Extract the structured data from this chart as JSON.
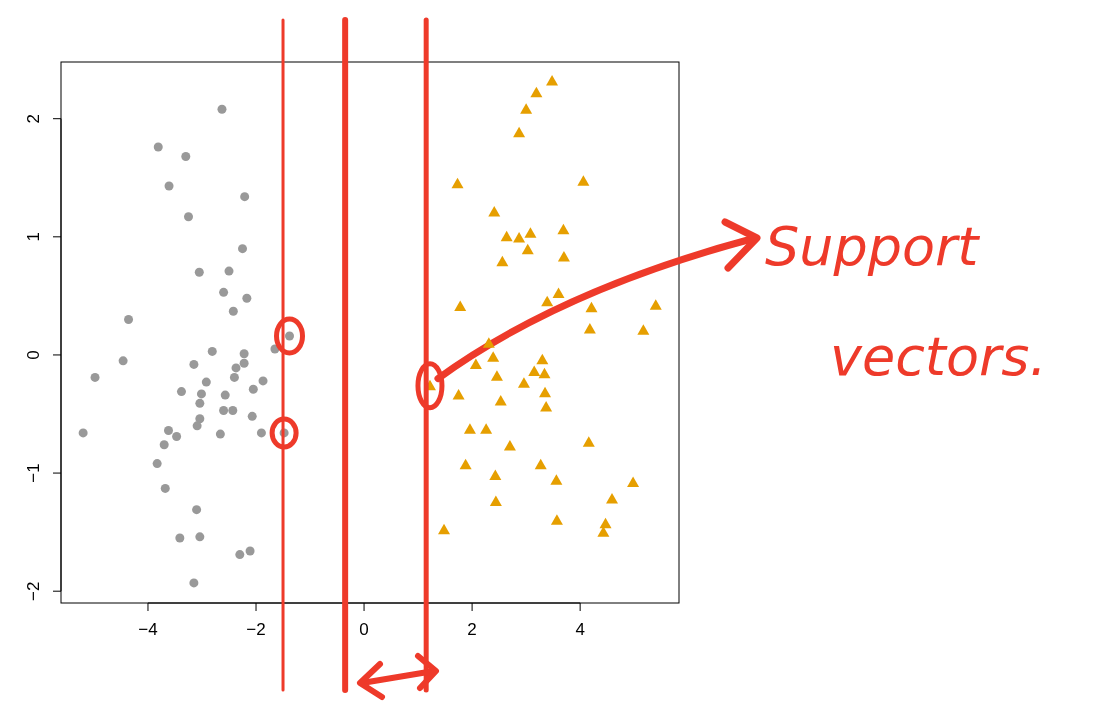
{
  "chart_data": {
    "type": "scatter",
    "xlim": [
      -5.61,
      5.83
    ],
    "ylim": [
      -2.1,
      2.48
    ],
    "xticks": [
      -4,
      -2,
      0,
      2,
      4
    ],
    "yticks": [
      -2,
      -1,
      0,
      1,
      2
    ],
    "grid": false,
    "series": [
      {
        "color": "#999999",
        "marker": "circle",
        "x": [
          -2.63,
          -3.81,
          -3.3,
          -3.61,
          -2.21,
          -3.25,
          -2.25,
          -3.05,
          -2.5,
          -2.6,
          -2.17,
          -2.42,
          -4.36,
          -1.38,
          -1.65,
          -2.81,
          -2.22,
          -4.46,
          -3.15,
          -2.22,
          -2.37,
          -4.98,
          -2.4,
          -2.92,
          -1.87,
          -2.05,
          -3.38,
          -3.01,
          -2.57,
          -3.04,
          -2.6,
          -2.43,
          -2.07,
          -3.04,
          -3.09,
          -3.62,
          -5.2,
          -2.66,
          -1.9,
          -1.48,
          -3.47,
          -3.7,
          -3.83,
          -3.68,
          -3.1,
          -3.41,
          -3.04,
          -2.3,
          -2.11,
          -3.15
        ],
        "values": [
          2.08,
          1.76,
          1.68,
          1.43,
          1.34,
          1.17,
          0.9,
          0.7,
          0.71,
          0.53,
          0.48,
          0.37,
          0.3,
          0.16,
          0.05,
          0.03,
          0.01,
          -0.05,
          -0.08,
          -0.07,
          -0.11,
          -0.19,
          -0.19,
          -0.23,
          -0.22,
          -0.29,
          -0.31,
          -0.33,
          -0.34,
          -0.41,
          -0.47,
          -0.47,
          -0.52,
          -0.54,
          -0.6,
          -0.64,
          -0.66,
          -0.67,
          -0.66,
          -0.66,
          -0.69,
          -0.76,
          -0.92,
          -1.13,
          -1.31,
          -1.55,
          -1.54,
          -1.69,
          -1.66,
          -1.93
        ]
      },
      {
        "color": "#e69f00",
        "marker": "triangle",
        "x": [
          3.48,
          3.19,
          3.0,
          2.87,
          1.73,
          4.06,
          2.41,
          2.64,
          2.87,
          3.08,
          3.69,
          3.03,
          3.7,
          2.56,
          1.78,
          3.6,
          3.39,
          4.21,
          5.4,
          4.18,
          5.17,
          2.31,
          2.07,
          2.39,
          3.3,
          2.46,
          3.15,
          3.34,
          2.96,
          1.22,
          1.75,
          3.35,
          2.53,
          3.37,
          1.96,
          2.26,
          2.7,
          4.16,
          1.88,
          3.27,
          2.43,
          3.56,
          4.98,
          4.59,
          2.44,
          3.57,
          4.47,
          4.43,
          1.48
        ],
        "values": [
          2.32,
          2.22,
          2.08,
          1.88,
          1.45,
          1.47,
          1.21,
          1.0,
          0.99,
          1.03,
          1.06,
          0.89,
          0.83,
          0.79,
          0.41,
          0.52,
          0.45,
          0.4,
          0.42,
          0.22,
          0.21,
          0.1,
          -0.08,
          -0.02,
          -0.04,
          -0.18,
          -0.14,
          -0.16,
          -0.24,
          -0.26,
          -0.34,
          -0.32,
          -0.39,
          -0.44,
          -0.63,
          -0.63,
          -0.77,
          -0.74,
          -0.93,
          -0.93,
          -1.02,
          -1.06,
          -1.08,
          -1.22,
          -1.24,
          -1.4,
          -1.43,
          -1.5,
          -1.48
        ]
      }
    ],
    "ref_lines": [
      {
        "axis": "x",
        "value": -1.5,
        "color": "#ee3a2a",
        "line_style": "solid"
      },
      {
        "axis": "x",
        "value": -0.35,
        "color": "#ee3a2a",
        "line_style": "solid"
      },
      {
        "axis": "x",
        "value": 1.15,
        "color": "#ee3a2a",
        "line_style": "solid"
      }
    ],
    "annotations": [
      "Support vectors."
    ]
  }
}
